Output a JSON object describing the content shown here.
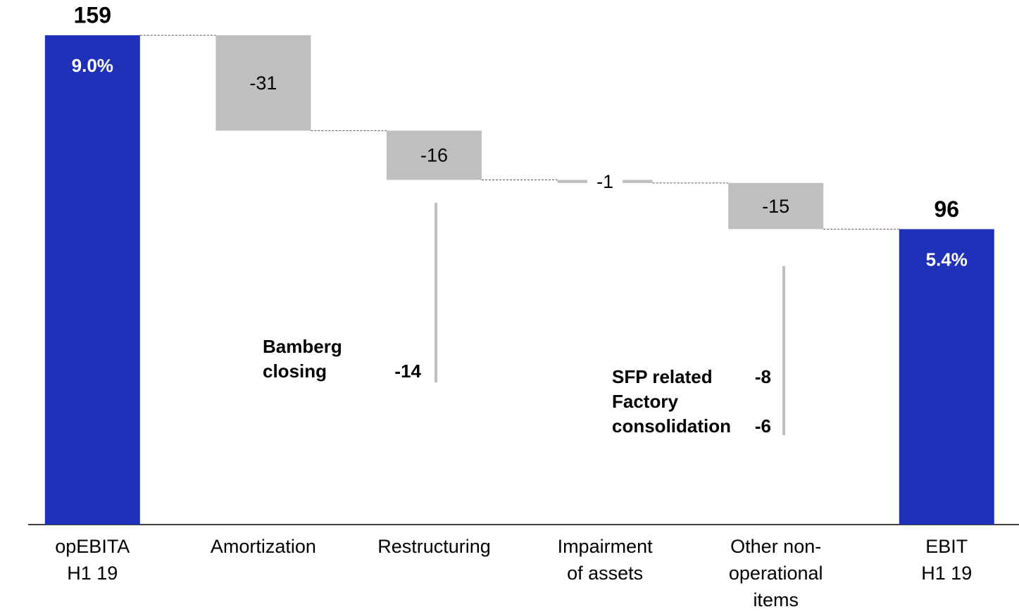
{
  "chart_data": {
    "type": "waterfall",
    "categories": [
      [
        "opEBITA",
        "H1 19"
      ],
      [
        "Amortization"
      ],
      [
        "Restructuring"
      ],
      [
        "Impairment",
        "of assets"
      ],
      [
        "Other non-",
        "operational",
        "items"
      ],
      [
        "EBIT",
        "H1 19"
      ]
    ],
    "values": [
      159,
      -31,
      -16,
      -1,
      -15,
      96
    ],
    "measures": [
      "absolute",
      "relative",
      "relative",
      "relative",
      "relative",
      "total"
    ],
    "margin_labels": [
      "9.0%",
      null,
      null,
      null,
      null,
      "5.4%"
    ],
    "total_color": "#1f31b8",
    "delta_color": "#bfbfbf",
    "ylim": [
      0,
      170
    ],
    "annotations": [
      {
        "items": [
          {
            "label": [
              "Bamberg",
              "closing"
            ],
            "value": -14
          }
        ]
      },
      {
        "items": [
          {
            "label": [
              "SFP related"
            ],
            "value": -8
          },
          {
            "label": [
              "Factory",
              "consolidation"
            ],
            "value": -6
          }
        ]
      }
    ]
  }
}
